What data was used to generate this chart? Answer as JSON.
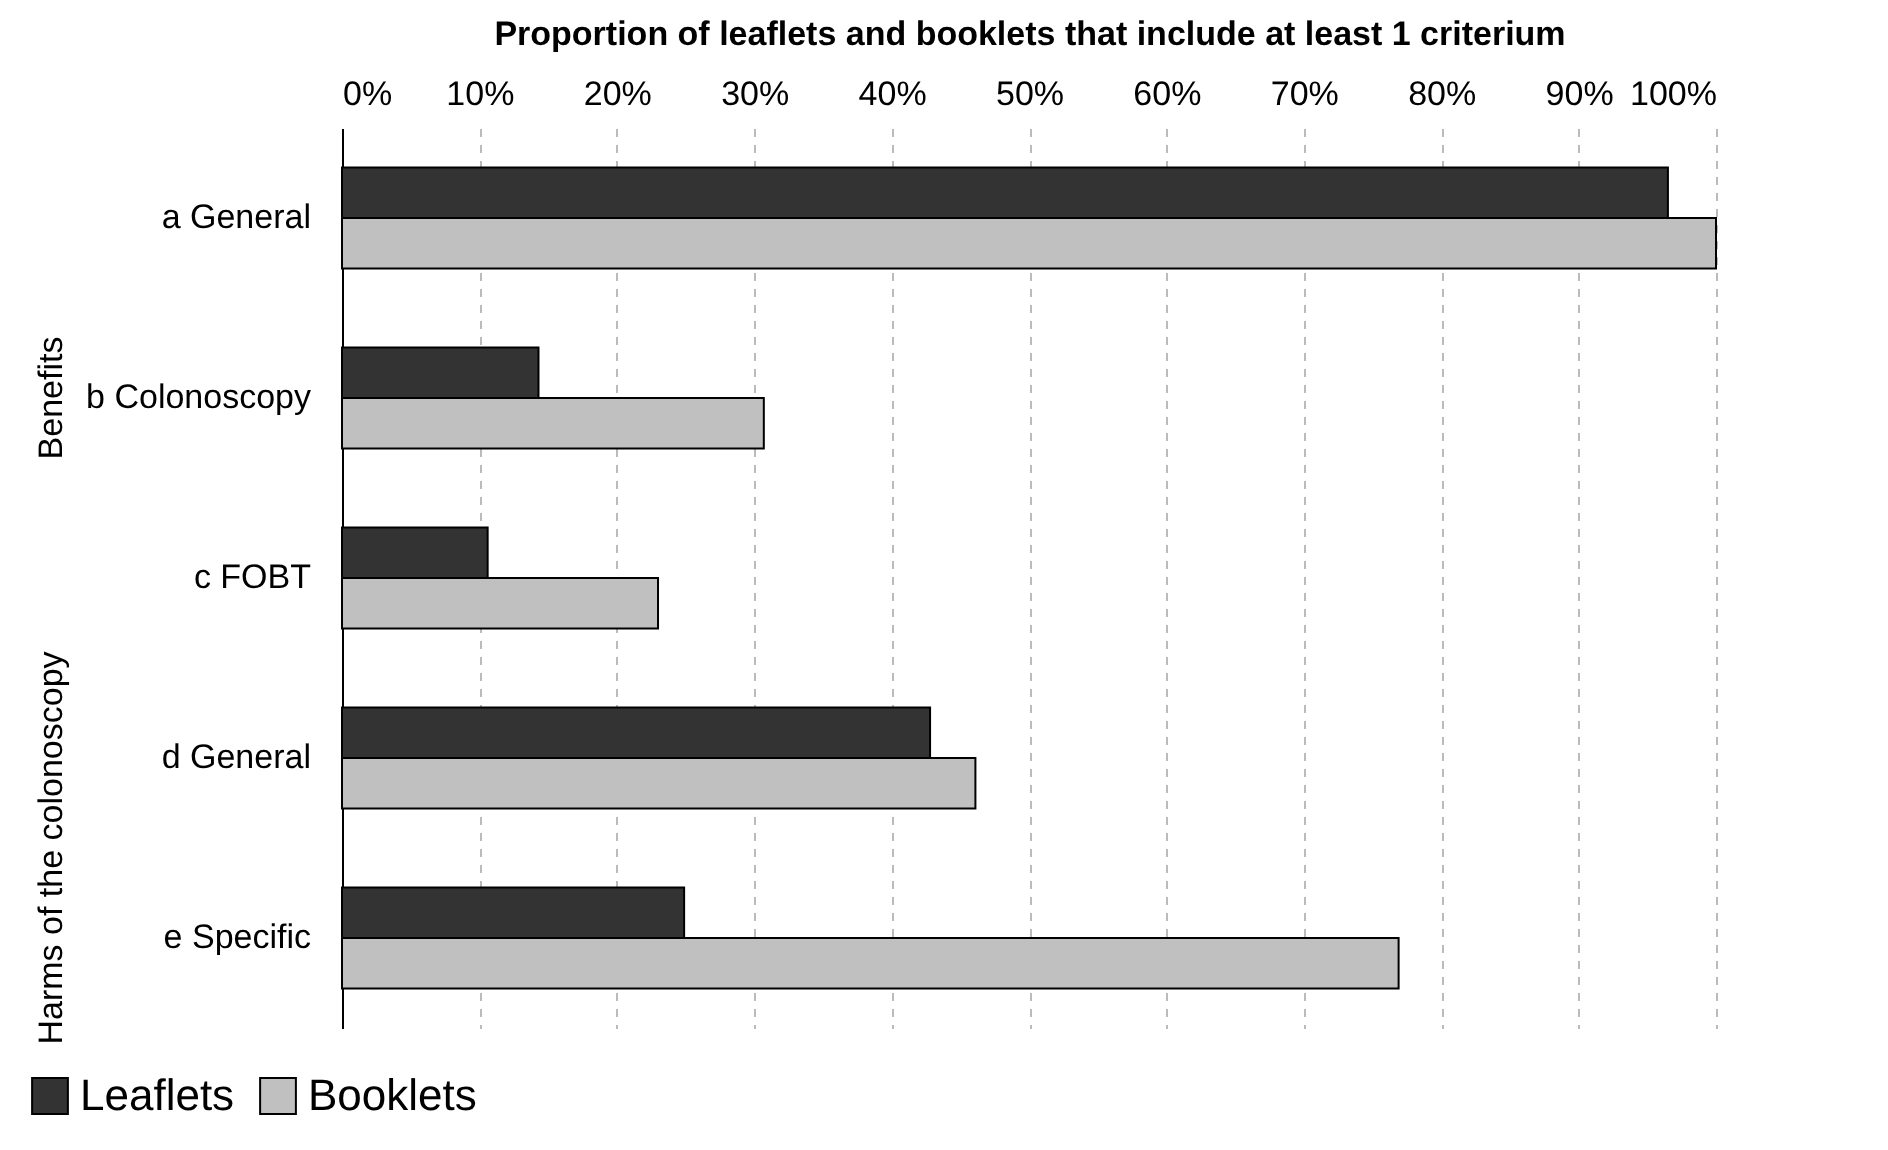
{
  "chart_data": {
    "type": "bar",
    "orientation": "horizontal",
    "xlabel": "Proportion of leaflets and booklets that include at least 1 criterium",
    "categories": [
      "a General",
      "b Colonoscopy",
      "c FOBT",
      "d General",
      "e Specific"
    ],
    "series": [
      {
        "name": "Leaflets",
        "color": "#333333",
        "values": [
          96.5,
          14.3,
          10.6,
          42.8,
          24.9
        ]
      },
      {
        "name": "Booklets",
        "color": "#c0c0c0",
        "values": [
          100,
          30.7,
          23.0,
          46.1,
          76.9
        ]
      }
    ],
    "xlim": [
      0,
      100
    ],
    "xticks": [
      {
        "value": 0,
        "label": "0%"
      },
      {
        "value": 10,
        "label": "10%"
      },
      {
        "value": 20,
        "label": "20%"
      },
      {
        "value": 30,
        "label": "30%"
      },
      {
        "value": 40,
        "label": "40%"
      },
      {
        "value": 50,
        "label": "50%"
      },
      {
        "value": 60,
        "label": "60%"
      },
      {
        "value": 70,
        "label": "70%"
      },
      {
        "value": 80,
        "label": "80%"
      },
      {
        "value": 90,
        "label": "90%"
      },
      {
        "value": 100,
        "label": "100%"
      }
    ],
    "grid": "x",
    "legend": "bottom",
    "annotations": [
      "Benefits",
      "Harms of the colonoscopy"
    ]
  }
}
